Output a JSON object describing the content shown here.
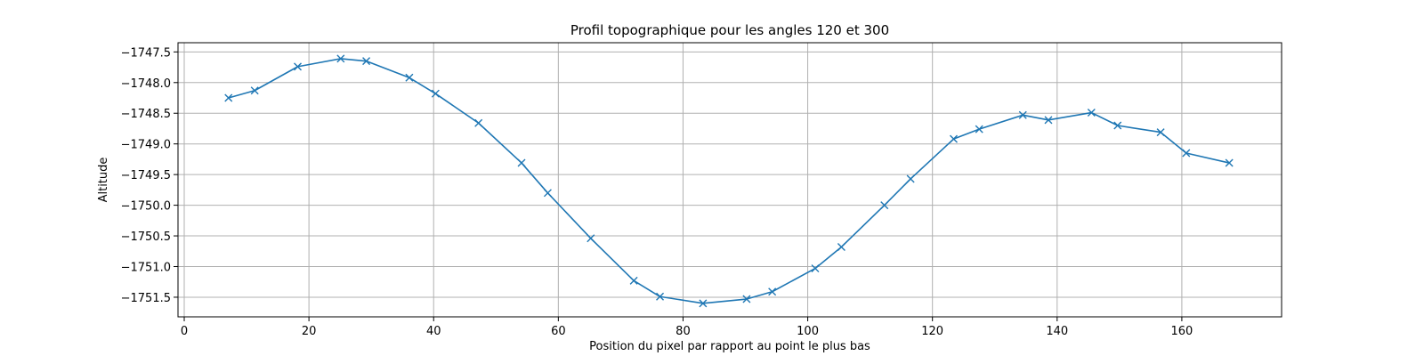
{
  "chart_data": {
    "type": "line",
    "title": "Profil topographique pour les angles 120 et 300",
    "xlabel": "Position du pixel par rapport au point le plus bas",
    "ylabel": "Altitude",
    "xlim": [
      -1,
      176
    ],
    "ylim": [
      -1751.82,
      -1747.35
    ],
    "xticks": [
      0,
      20,
      40,
      60,
      80,
      100,
      120,
      140,
      160
    ],
    "yticks": [
      -1747.5,
      -1748.0,
      -1748.5,
      -1749.0,
      -1749.5,
      -1750.0,
      -1750.5,
      -1751.0,
      -1751.5
    ],
    "xtick_labels": [
      "0",
      "20",
      "40",
      "60",
      "80",
      "100",
      "120",
      "140",
      "160"
    ],
    "ytick_labels": [
      "−1747.5",
      "−1748.0",
      "−1748.5",
      "−1749.0",
      "−1749.5",
      "−1750.0",
      "−1750.5",
      "−1751.0",
      "−1751.5"
    ],
    "grid": true,
    "marker": "x",
    "color": "#1f77b4",
    "series": [
      {
        "x": [
          7.1,
          11.3,
          18.2,
          25.1,
          29.2,
          36.1,
          40.3,
          47.2,
          54.1,
          58.3,
          65.2,
          72.1,
          76.3,
          83.2,
          90.2,
          94.3,
          101.2,
          105.4,
          112.3,
          116.5,
          123.4,
          127.5,
          134.5,
          138.6,
          145.5,
          149.7,
          156.6,
          160.7,
          167.6
        ],
        "y": [
          -1748.25,
          -1748.13,
          -1747.74,
          -1747.61,
          -1747.65,
          -1747.92,
          -1748.18,
          -1748.66,
          -1749.31,
          -1749.8,
          -1750.54,
          -1751.23,
          -1751.49,
          -1751.6,
          -1751.53,
          -1751.41,
          -1751.03,
          -1750.68,
          -1750.0,
          -1749.57,
          -1748.92,
          -1748.76,
          -1748.53,
          -1748.61,
          -1748.49,
          -1748.7,
          -1748.81,
          -1749.15,
          -1749.31
        ]
      }
    ]
  }
}
